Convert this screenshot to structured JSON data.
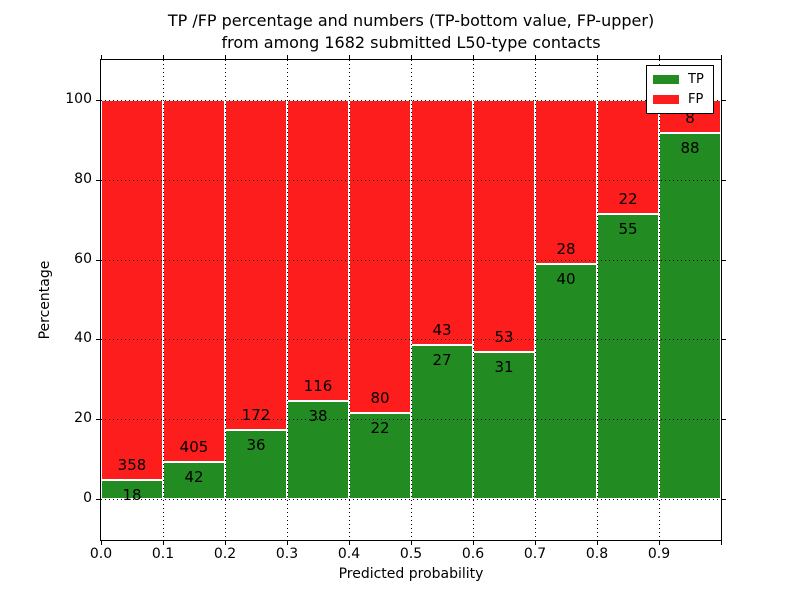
{
  "figure": {
    "title_line1": "TP /FP percentage and numbers (TP-bottom value, FP-upper)",
    "title_line2": "from among 1682 submitted L50-type contacts"
  },
  "chart_data": {
    "type": "bar",
    "subtype": "stacked-percentage",
    "title": "TP /FP percentage and numbers (TP-bottom value, FP-upper) from among 1682 submitted L50-type contacts",
    "xlabel": "Predicted probability",
    "ylabel": "Percentage",
    "total_contacts": 1682,
    "categories": [
      "0.0",
      "0.1",
      "0.2",
      "0.3",
      "0.4",
      "0.5",
      "0.6",
      "0.7",
      "0.8",
      "0.9"
    ],
    "bin_width": 0.1,
    "series": [
      {
        "name": "TP",
        "color": "#228b22",
        "values": [
          18,
          42,
          36,
          38,
          22,
          27,
          31,
          40,
          55,
          88
        ]
      },
      {
        "name": "FP",
        "color": "#fd1d1d",
        "values": [
          358,
          405,
          172,
          116,
          80,
          43,
          53,
          28,
          22,
          8
        ]
      }
    ],
    "tp_percent_of_bin": [
      4.8,
      9.4,
      17.3,
      24.7,
      21.6,
      38.6,
      36.9,
      58.8,
      71.4,
      91.7
    ],
    "bar_total_percent": 100,
    "x_ticks": [
      "0.0",
      "0.1",
      "0.2",
      "0.3",
      "0.4",
      "0.5",
      "0.6",
      "0.7",
      "0.8",
      "0.9"
    ],
    "y_ticks": [
      0,
      20,
      40,
      60,
      80,
      100
    ],
    "xlim": [
      0.0,
      1.0
    ],
    "ylim": [
      -10,
      110
    ],
    "grid": "dotted black, both axes",
    "legend": {
      "position": "upper right",
      "entries": [
        {
          "label": "TP",
          "color": "#228b22"
        },
        {
          "label": "FP",
          "color": "#fd1d1d"
        }
      ]
    }
  }
}
